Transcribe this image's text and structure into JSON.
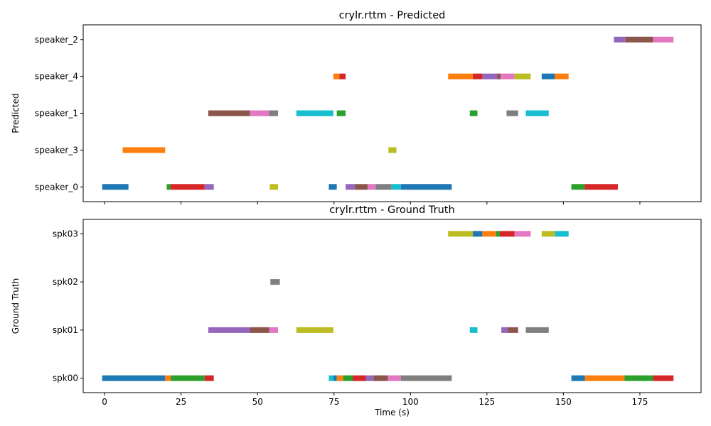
{
  "chart_data": [
    {
      "type": "timeline",
      "title": "crylr.rttm - Predicted",
      "xlabel": "",
      "ylabel": "Predicted",
      "xlim": [
        -7,
        195
      ],
      "xticks": [
        0,
        25,
        50,
        75,
        100,
        125,
        150,
        175
      ],
      "show_xtick_labels": false,
      "categories": [
        "speaker_0",
        "speaker_3",
        "speaker_1",
        "speaker_4",
        "speaker_2"
      ],
      "segments": [
        {
          "row": "speaker_0",
          "start": -0.8,
          "end": 7.8,
          "color": "#1f77b4"
        },
        {
          "row": "speaker_0",
          "start": 20.3,
          "end": 21.6,
          "color": "#2ca02c"
        },
        {
          "row": "speaker_0",
          "start": 21.6,
          "end": 32.7,
          "color": "#d62728"
        },
        {
          "row": "speaker_0",
          "start": 32.7,
          "end": 35.7,
          "color": "#9467bd"
        },
        {
          "row": "speaker_0",
          "start": 54.0,
          "end": 56.7,
          "color": "#bcbd22"
        },
        {
          "row": "speaker_0",
          "start": 73.3,
          "end": 75.9,
          "color": "#1f77b4"
        },
        {
          "row": "speaker_0",
          "start": 78.8,
          "end": 81.9,
          "color": "#9467bd"
        },
        {
          "row": "speaker_0",
          "start": 81.9,
          "end": 86.0,
          "color": "#8c564b"
        },
        {
          "row": "speaker_0",
          "start": 86.0,
          "end": 88.6,
          "color": "#e377c2"
        },
        {
          "row": "speaker_0",
          "start": 88.6,
          "end": 93.8,
          "color": "#7f7f7f"
        },
        {
          "row": "speaker_0",
          "start": 93.8,
          "end": 96.9,
          "color": "#17becf"
        },
        {
          "row": "speaker_0",
          "start": 96.9,
          "end": 113.5,
          "color": "#1f77b4"
        },
        {
          "row": "speaker_0",
          "start": 152.6,
          "end": 157.0,
          "color": "#2ca02c"
        },
        {
          "row": "speaker_0",
          "start": 157.0,
          "end": 167.8,
          "color": "#d62728"
        },
        {
          "row": "speaker_3",
          "start": 5.9,
          "end": 19.8,
          "color": "#ff7f0e"
        },
        {
          "row": "speaker_3",
          "start": 92.8,
          "end": 95.4,
          "color": "#bcbd22"
        },
        {
          "row": "speaker_1",
          "start": 33.9,
          "end": 47.5,
          "color": "#8c564b"
        },
        {
          "row": "speaker_1",
          "start": 47.5,
          "end": 53.8,
          "color": "#e377c2"
        },
        {
          "row": "speaker_1",
          "start": 53.8,
          "end": 56.7,
          "color": "#7f7f7f"
        },
        {
          "row": "speaker_1",
          "start": 62.7,
          "end": 74.8,
          "color": "#17becf"
        },
        {
          "row": "speaker_1",
          "start": 75.9,
          "end": 78.8,
          "color": "#2ca02c"
        },
        {
          "row": "speaker_1",
          "start": 119.4,
          "end": 121.9,
          "color": "#2ca02c"
        },
        {
          "row": "speaker_1",
          "start": 131.4,
          "end": 135.2,
          "color": "#7f7f7f"
        },
        {
          "row": "speaker_1",
          "start": 137.7,
          "end": 145.2,
          "color": "#17becf"
        },
        {
          "row": "speaker_4",
          "start": 74.8,
          "end": 76.8,
          "color": "#ff7f0e"
        },
        {
          "row": "speaker_4",
          "start": 76.8,
          "end": 78.8,
          "color": "#d62728"
        },
        {
          "row": "speaker_4",
          "start": 112.3,
          "end": 120.4,
          "color": "#ff7f0e"
        },
        {
          "row": "speaker_4",
          "start": 120.4,
          "end": 123.5,
          "color": "#d62728"
        },
        {
          "row": "speaker_4",
          "start": 123.5,
          "end": 128.4,
          "color": "#9467bd"
        },
        {
          "row": "speaker_4",
          "start": 128.4,
          "end": 129.5,
          "color": "#8c564b"
        },
        {
          "row": "speaker_4",
          "start": 129.5,
          "end": 134.0,
          "color": "#e377c2"
        },
        {
          "row": "speaker_4",
          "start": 134.0,
          "end": 139.3,
          "color": "#bcbd22"
        },
        {
          "row": "speaker_4",
          "start": 142.9,
          "end": 147.2,
          "color": "#1f77b4"
        },
        {
          "row": "speaker_4",
          "start": 147.2,
          "end": 151.7,
          "color": "#ff7f0e"
        },
        {
          "row": "speaker_2",
          "start": 166.5,
          "end": 170.3,
          "color": "#9467bd"
        },
        {
          "row": "speaker_2",
          "start": 170.3,
          "end": 179.3,
          "color": "#8c564b"
        },
        {
          "row": "speaker_2",
          "start": 179.3,
          "end": 186.0,
          "color": "#e377c2"
        }
      ]
    },
    {
      "type": "timeline",
      "title": "crylr.rttm - Ground Truth",
      "xlabel": "Time (s)",
      "ylabel": "Ground Truth",
      "xlim": [
        -7,
        195
      ],
      "xticks": [
        0,
        25,
        50,
        75,
        100,
        125,
        150,
        175
      ],
      "show_xtick_labels": true,
      "categories": [
        "spk00",
        "spk01",
        "spk02",
        "spk03"
      ],
      "segments": [
        {
          "row": "spk00",
          "start": -0.8,
          "end": 19.8,
          "color": "#1f77b4"
        },
        {
          "row": "spk00",
          "start": 19.8,
          "end": 21.6,
          "color": "#ff7f0e"
        },
        {
          "row": "spk00",
          "start": 21.6,
          "end": 32.7,
          "color": "#2ca02c"
        },
        {
          "row": "spk00",
          "start": 32.7,
          "end": 35.7,
          "color": "#d62728"
        },
        {
          "row": "spk00",
          "start": 73.3,
          "end": 74.8,
          "color": "#17becf"
        },
        {
          "row": "spk00",
          "start": 74.8,
          "end": 75.9,
          "color": "#1f77b4"
        },
        {
          "row": "spk00",
          "start": 75.9,
          "end": 78.0,
          "color": "#ff7f0e"
        },
        {
          "row": "spk00",
          "start": 78.0,
          "end": 81.1,
          "color": "#2ca02c"
        },
        {
          "row": "spk00",
          "start": 81.1,
          "end": 85.4,
          "color": "#d62728"
        },
        {
          "row": "spk00",
          "start": 85.4,
          "end": 87.9,
          "color": "#9467bd"
        },
        {
          "row": "spk00",
          "start": 87.9,
          "end": 92.6,
          "color": "#8c564b"
        },
        {
          "row": "spk00",
          "start": 92.6,
          "end": 96.9,
          "color": "#e377c2"
        },
        {
          "row": "spk00",
          "start": 96.9,
          "end": 113.5,
          "color": "#7f7f7f"
        },
        {
          "row": "spk00",
          "start": 152.6,
          "end": 157.0,
          "color": "#1f77b4"
        },
        {
          "row": "spk00",
          "start": 157.0,
          "end": 170.0,
          "color": "#ff7f0e"
        },
        {
          "row": "spk00",
          "start": 170.0,
          "end": 179.3,
          "color": "#2ca02c"
        },
        {
          "row": "spk00",
          "start": 179.3,
          "end": 186.0,
          "color": "#d62728"
        },
        {
          "row": "spk01",
          "start": 33.9,
          "end": 47.5,
          "color": "#9467bd"
        },
        {
          "row": "spk01",
          "start": 47.5,
          "end": 53.8,
          "color": "#8c564b"
        },
        {
          "row": "spk01",
          "start": 53.8,
          "end": 56.7,
          "color": "#e377c2"
        },
        {
          "row": "spk01",
          "start": 62.7,
          "end": 74.8,
          "color": "#bcbd22"
        },
        {
          "row": "spk01",
          "start": 119.4,
          "end": 121.9,
          "color": "#17becf"
        },
        {
          "row": "spk01",
          "start": 129.7,
          "end": 131.8,
          "color": "#9467bd"
        },
        {
          "row": "spk01",
          "start": 131.8,
          "end": 135.2,
          "color": "#8c564b"
        },
        {
          "row": "spk01",
          "start": 137.7,
          "end": 145.2,
          "color": "#7f7f7f"
        },
        {
          "row": "spk02",
          "start": 54.2,
          "end": 57.3,
          "color": "#7f7f7f"
        },
        {
          "row": "spk03",
          "start": 112.3,
          "end": 120.4,
          "color": "#bcbd22"
        },
        {
          "row": "spk03",
          "start": 120.4,
          "end": 123.5,
          "color": "#1f77b4"
        },
        {
          "row": "spk03",
          "start": 123.5,
          "end": 128.0,
          "color": "#ff7f0e"
        },
        {
          "row": "spk03",
          "start": 128.0,
          "end": 129.2,
          "color": "#2ca02c"
        },
        {
          "row": "spk03",
          "start": 129.2,
          "end": 134.0,
          "color": "#d62728"
        },
        {
          "row": "spk03",
          "start": 134.0,
          "end": 139.3,
          "color": "#e377c2"
        },
        {
          "row": "spk03",
          "start": 142.9,
          "end": 147.2,
          "color": "#bcbd22"
        },
        {
          "row": "spk03",
          "start": 147.2,
          "end": 151.7,
          "color": "#17becf"
        }
      ]
    }
  ]
}
